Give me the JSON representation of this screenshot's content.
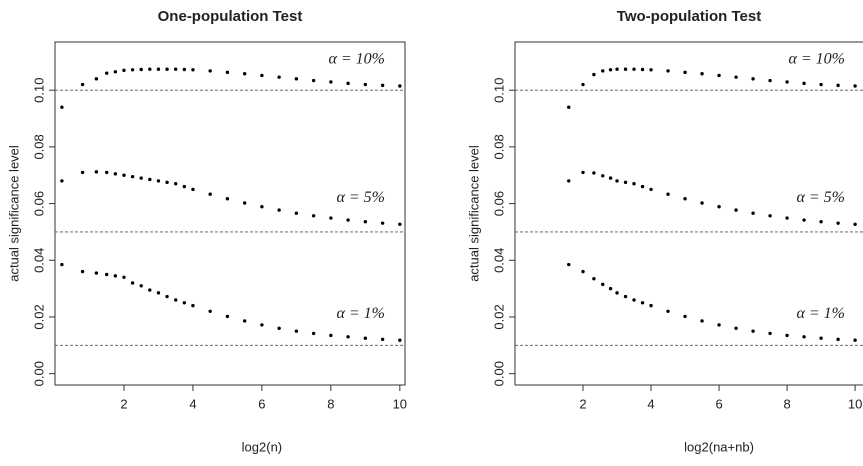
{
  "chart_data": [
    {
      "type": "scatter",
      "title": "One-population Test",
      "xlabel": "log2(n)",
      "ylabel": "actual significance level",
      "x": [
        0.2,
        0.8,
        1.2,
        1.5,
        1.75,
        2,
        2.25,
        2.5,
        2.75,
        3,
        3.25,
        3.5,
        3.75,
        4,
        4.5,
        5,
        5.5,
        6,
        6.5,
        7,
        7.5,
        8,
        8.5,
        9,
        9.5,
        10
      ],
      "series": [
        {
          "name": "α = 10%",
          "color": "#000000",
          "values": [
            0.094,
            0.102,
            0.104,
            0.106,
            0.1065,
            0.107,
            0.1072,
            0.1073,
            0.1074,
            0.1074,
            0.1074,
            0.1074,
            0.1073,
            0.1072,
            0.1068,
            0.1063,
            0.1058,
            0.1052,
            0.1046,
            0.104,
            0.1034,
            0.1029,
            0.1024,
            0.102,
            0.1017,
            0.1015
          ]
        },
        {
          "name": "α = 5%",
          "color": "#000000",
          "values": [
            0.068,
            0.071,
            0.0712,
            0.071,
            0.0705,
            0.07,
            0.0695,
            0.069,
            0.0685,
            0.068,
            0.0675,
            0.067,
            0.066,
            0.065,
            0.0633,
            0.0617,
            0.0602,
            0.0589,
            0.0577,
            0.0566,
            0.0557,
            0.0549,
            0.0542,
            0.0536,
            0.0531,
            0.0527
          ]
        },
        {
          "name": "α = 1%",
          "color": "#000000",
          "values": [
            0.0385,
            0.036,
            0.0355,
            0.035,
            0.0345,
            0.034,
            0.032,
            0.031,
            0.0295,
            0.0285,
            0.0272,
            0.026,
            0.025,
            0.024,
            0.022,
            0.0202,
            0.0186,
            0.0172,
            0.016,
            0.015,
            0.0142,
            0.0135,
            0.013,
            0.0125,
            0.0121,
            0.0118
          ]
        }
      ],
      "hlines": [
        0.1,
        0.05,
        0.01
      ],
      "xlim": [
        0,
        10.15
      ],
      "ylim": [
        -0.004,
        0.117
      ],
      "xticks": [
        2,
        4,
        6,
        8,
        10
      ],
      "yticks": [
        {
          "value": 0,
          "label": "0.00"
        },
        0.02,
        0.04,
        0.06,
        0.08,
        {
          "value": 0.1,
          "label": "0.10"
        }
      ]
    },
    {
      "type": "scatter",
      "title": "Two-population Test",
      "xlabel": "log2(na+nb)",
      "ylabel": "actual significance level",
      "x": [
        1.58,
        2,
        2.32,
        2.58,
        2.81,
        3,
        3.25,
        3.5,
        3.75,
        4,
        4.5,
        5,
        5.5,
        6,
        6.5,
        7,
        7.5,
        8,
        8.5,
        9,
        9.5,
        10
      ],
      "series": [
        {
          "name": "α = 10%",
          "color": "#000000",
          "values": [
            0.094,
            0.102,
            0.1055,
            0.1068,
            0.1072,
            0.1074,
            0.1074,
            0.1074,
            0.1073,
            0.1072,
            0.1068,
            0.1063,
            0.1058,
            0.1052,
            0.1046,
            0.104,
            0.1034,
            0.1029,
            0.1024,
            0.102,
            0.1017,
            0.1015
          ]
        },
        {
          "name": "α = 5%",
          "color": "#000000",
          "values": [
            0.068,
            0.071,
            0.0708,
            0.0698,
            0.069,
            0.068,
            0.0675,
            0.067,
            0.066,
            0.065,
            0.0633,
            0.0617,
            0.0602,
            0.0589,
            0.0577,
            0.0566,
            0.0557,
            0.0549,
            0.0542,
            0.0536,
            0.0531,
            0.0527
          ]
        },
        {
          "name": "α = 1%",
          "color": "#000000",
          "values": [
            0.0385,
            0.036,
            0.0335,
            0.0315,
            0.03,
            0.0285,
            0.0272,
            0.026,
            0.025,
            0.024,
            0.022,
            0.0202,
            0.0186,
            0.0172,
            0.016,
            0.015,
            0.0142,
            0.0135,
            0.013,
            0.0125,
            0.0121,
            0.0118
          ]
        }
      ],
      "hlines": [
        0.1,
        0.05,
        0.01
      ],
      "xlim": [
        0,
        10.35
      ],
      "ylim": [
        -0.004,
        0.117
      ],
      "xticks": [
        2,
        4,
        6,
        8,
        10
      ],
      "yticks": [
        {
          "value": 0,
          "label": "0.00"
        },
        0.02,
        0.04,
        0.06,
        0.08,
        {
          "value": 0.1,
          "label": "0.10"
        }
      ]
    }
  ]
}
